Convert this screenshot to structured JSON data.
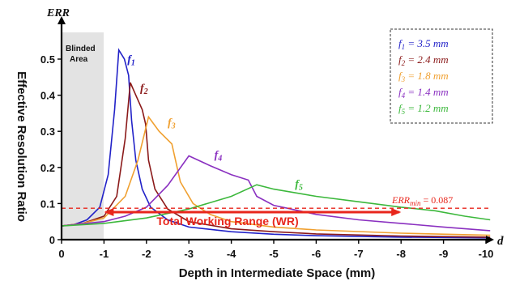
{
  "chart_data": {
    "type": "line",
    "ylabel": "Effective Resolution Ratio",
    "yaxis_title": "ERR",
    "xlabel": "Depth in  Intermediate Space (mm)",
    "xaxis_title": "d",
    "x_ticks": [
      "0",
      "-1",
      "-2",
      "-3",
      "-4",
      "-5",
      "-6",
      "-7",
      "-8",
      "-9",
      "-10"
    ],
    "y_ticks": [
      "0",
      "0.1",
      "0.2",
      "0.3",
      "0.4",
      "0.5"
    ],
    "xlim": [
      0,
      -10.3
    ],
    "ylim": [
      0,
      0.58
    ],
    "grid": false,
    "legend_position": "top-right",
    "blinded_area": {
      "label_line1": "Blinded",
      "label_line2": "Area",
      "x_range": [
        0,
        -1
      ]
    },
    "threshold": {
      "label": "ERR_min = 0.087",
      "label_main": "ERR",
      "label_sub": "min",
      "label_value": " = 0.087",
      "value": 0.087
    },
    "working_range": {
      "label": "Total Working Range (WR)",
      "x_range": [
        -1,
        -8
      ]
    },
    "series": [
      {
        "name": "f1 = 3.5 mm",
        "sym": "f",
        "sub": "1",
        "spec": " = 3.5 mm",
        "color": "#2222c8",
        "points": [
          [
            0,
            0.038
          ],
          [
            -0.3,
            0.042
          ],
          [
            -0.6,
            0.055
          ],
          [
            -0.9,
            0.09
          ],
          [
            -1.1,
            0.18
          ],
          [
            -1.25,
            0.36
          ],
          [
            -1.35,
            0.525
          ],
          [
            -1.48,
            0.5
          ],
          [
            -1.58,
            0.455
          ],
          [
            -1.65,
            0.33
          ],
          [
            -1.75,
            0.22
          ],
          [
            -1.9,
            0.14
          ],
          [
            -2.1,
            0.09
          ],
          [
            -2.5,
            0.055
          ],
          [
            -3,
            0.035
          ],
          [
            -4,
            0.022
          ],
          [
            -5,
            0.015
          ],
          [
            -6,
            0.011
          ],
          [
            -8,
            0.007
          ],
          [
            -10.1,
            0.005
          ]
        ]
      },
      {
        "name": "f2 = 2.4 mm",
        "sym": "f",
        "sub": "2",
        "spec": " = 2.4 mm",
        "color": "#8b1a1a",
        "points": [
          [
            0,
            0.038
          ],
          [
            -0.5,
            0.045
          ],
          [
            -1,
            0.065
          ],
          [
            -1.3,
            0.12
          ],
          [
            -1.5,
            0.28
          ],
          [
            -1.62,
            0.435
          ],
          [
            -1.75,
            0.4
          ],
          [
            -1.9,
            0.36
          ],
          [
            -1.98,
            0.32
          ],
          [
            -2.05,
            0.22
          ],
          [
            -2.2,
            0.14
          ],
          [
            -2.5,
            0.085
          ],
          [
            -3,
            0.05
          ],
          [
            -4,
            0.03
          ],
          [
            -5,
            0.022
          ],
          [
            -6,
            0.016
          ],
          [
            -8,
            0.01
          ],
          [
            -10.1,
            0.007
          ]
        ]
      },
      {
        "name": "f3 = 1.8 mm",
        "sym": "f",
        "sub": "3",
        "spec": " = 1.8 mm",
        "color": "#f0a030",
        "points": [
          [
            0,
            0.038
          ],
          [
            -0.5,
            0.045
          ],
          [
            -1,
            0.06
          ],
          [
            -1.5,
            0.12
          ],
          [
            -1.8,
            0.22
          ],
          [
            -2.05,
            0.34
          ],
          [
            -2.3,
            0.3
          ],
          [
            -2.6,
            0.265
          ],
          [
            -2.8,
            0.16
          ],
          [
            -3.1,
            0.1
          ],
          [
            -3.5,
            0.07
          ],
          [
            -4,
            0.05
          ],
          [
            -5,
            0.035
          ],
          [
            -6,
            0.027
          ],
          [
            -8,
            0.018
          ],
          [
            -10.1,
            0.012
          ]
        ]
      },
      {
        "name": "f4 = 1.4 mm",
        "sym": "f",
        "sub": "4",
        "spec": " = 1.4 mm",
        "color": "#8a30c0",
        "points": [
          [
            0,
            0.038
          ],
          [
            -1,
            0.05
          ],
          [
            -1.5,
            0.065
          ],
          [
            -2,
            0.09
          ],
          [
            -2.5,
            0.15
          ],
          [
            -3,
            0.232
          ],
          [
            -3.5,
            0.205
          ],
          [
            -4,
            0.18
          ],
          [
            -4.4,
            0.165
          ],
          [
            -4.6,
            0.12
          ],
          [
            -5,
            0.095
          ],
          [
            -6,
            0.07
          ],
          [
            -7,
            0.055
          ],
          [
            -8,
            0.045
          ],
          [
            -9,
            0.035
          ],
          [
            -10.1,
            0.025
          ]
        ]
      },
      {
        "name": "f5 = 1.2 mm",
        "sym": "f",
        "sub": "5",
        "spec": " = 1.2 mm",
        "color": "#3cb83c",
        "points": [
          [
            0,
            0.038
          ],
          [
            -1,
            0.045
          ],
          [
            -2,
            0.06
          ],
          [
            -3,
            0.085
          ],
          [
            -4,
            0.12
          ],
          [
            -4.6,
            0.152
          ],
          [
            -5,
            0.14
          ],
          [
            -6,
            0.12
          ],
          [
            -7,
            0.105
          ],
          [
            -8,
            0.09
          ],
          [
            -8.8,
            0.08
          ],
          [
            -9.5,
            0.065
          ],
          [
            -10.1,
            0.055
          ]
        ]
      }
    ]
  }
}
